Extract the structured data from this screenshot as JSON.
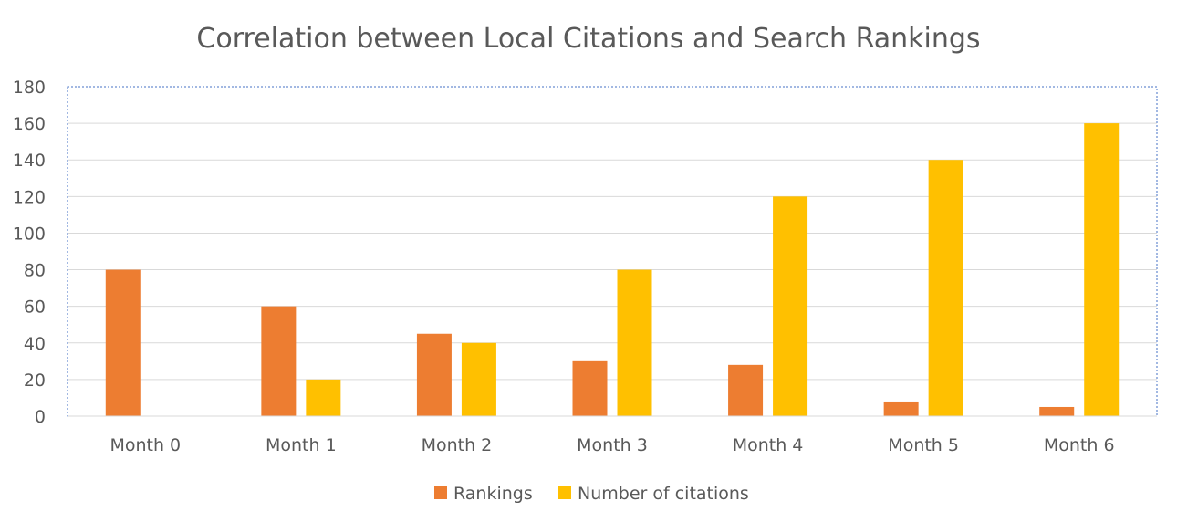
{
  "chart_data": {
    "type": "bar",
    "title": "Correlation between Local Citations and Search Rankings",
    "xlabel": "",
    "ylabel": "",
    "categories": [
      "Month 0",
      "Month 1",
      "Month 2",
      "Month 3",
      "Month 4",
      "Month 5",
      "Month 6"
    ],
    "series": [
      {
        "name": "Rankings",
        "color": "#ED7D31",
        "values": [
          80,
          60,
          45,
          30,
          28,
          8,
          5
        ]
      },
      {
        "name": "Number of citations",
        "color": "#FFC000",
        "values": [
          0,
          20,
          40,
          80,
          120,
          140,
          160
        ]
      }
    ],
    "ylim": [
      0,
      180
    ],
    "yticks": [
      "0",
      "20",
      "40",
      "60",
      "80",
      "100",
      "120",
      "140",
      "160",
      "180"
    ],
    "grid": true,
    "legend_position": "bottom"
  }
}
